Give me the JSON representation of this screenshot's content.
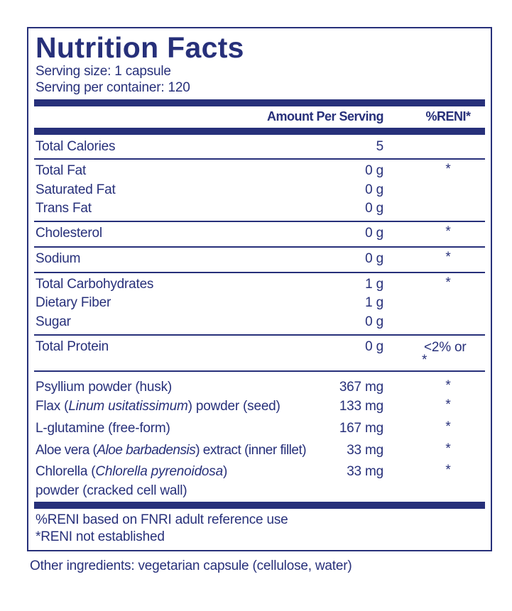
{
  "title": "Nutrition Facts",
  "serving_size": "Serving size:  1 capsule",
  "servings_per_container": "Serving per container:  120",
  "header": {
    "amount": "Amount Per Serving",
    "reni": "%RENI*"
  },
  "rows": [
    {
      "name": "Total Calories",
      "amount": "5",
      "reni": ""
    },
    {
      "name": "Total Fat",
      "amount": "0 g",
      "reni": "*"
    },
    {
      "name": "Saturated Fat",
      "amount": "0 g",
      "reni": ""
    },
    {
      "name": "Trans Fat",
      "amount": "0 g",
      "reni": ""
    },
    {
      "name": "Cholesterol",
      "amount": "0 g",
      "reni": "*"
    },
    {
      "name": "Sodium",
      "amount": "0 g",
      "reni": "*"
    },
    {
      "name": "Total Carbohydrates",
      "amount": "1 g",
      "reni": "*"
    },
    {
      "name": "Dietary Fiber",
      "amount": "1 g",
      "reni": ""
    },
    {
      "name": "Sugar",
      "amount": "0 g",
      "reni": ""
    },
    {
      "name": "Total Protein",
      "amount": "0 g",
      "reni": "<2% or",
      "reni2": "*"
    }
  ],
  "ingredients": [
    {
      "name": "Psyllium powder (husk)",
      "amount": "367 mg",
      "reni": "*"
    },
    {
      "pre": "Flax (",
      "latin": "Linum usitatissimum",
      "post": ") powder (seed)",
      "amount": "133 mg",
      "reni": "*"
    },
    {
      "name": "L-glutamine (free-form)",
      "amount": "167 mg",
      "reni": "*"
    },
    {
      "pre": "Aloe vera (",
      "latin": "Aloe barbadensis",
      "post": ") extract (inner fillet)",
      "amount": "33 mg",
      "reni": "*"
    },
    {
      "pre": "Chlorella (",
      "latin": "Chlorella pyrenoidosa",
      "post": ")",
      "line2": "powder (cracked cell wall)",
      "amount": "33 mg",
      "reni": "*"
    }
  ],
  "footnotes": [
    "%RENI based on FNRI adult reference use",
    "*RENI not established"
  ],
  "other_ingredients": "Other ingredients: vegetarian capsule (cellulose, water)",
  "colors": {
    "navy": "#27307a"
  }
}
